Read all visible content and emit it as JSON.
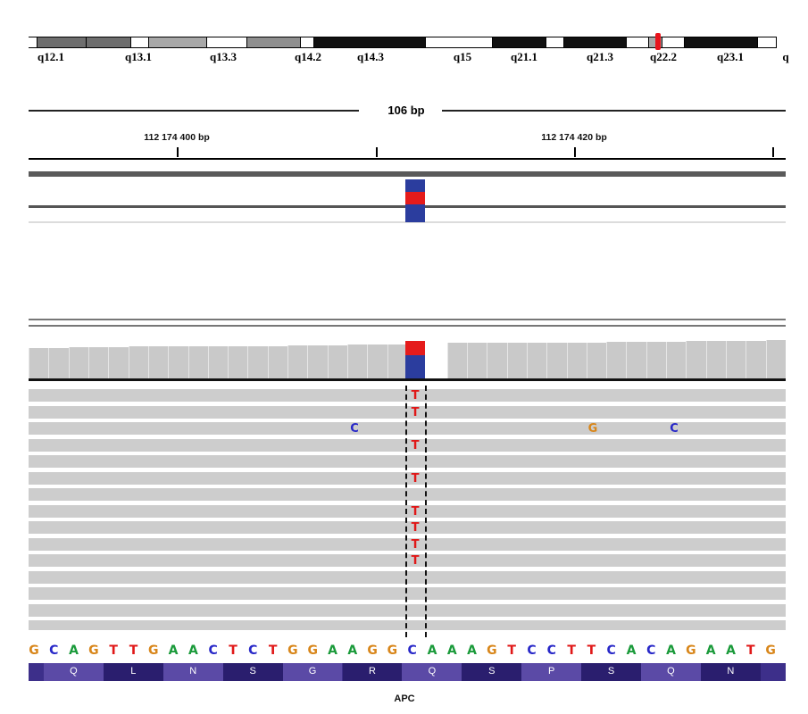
{
  "ideogram": {
    "bands": [
      {
        "color": "#ffffff"
      },
      {
        "color": "#6e6e6e"
      },
      {
        "color": "#6e6e6e"
      },
      {
        "color": "#ffffff"
      },
      {
        "color": "#a8a8a8"
      },
      {
        "color": "#ffffff"
      },
      {
        "color": "#8f8f8f"
      },
      {
        "color": "#ffffff"
      },
      {
        "color": "#111111"
      },
      {
        "color": "#ffffff"
      },
      {
        "color": "#111111"
      },
      {
        "color": "#ffffff"
      },
      {
        "color": "#111111"
      },
      {
        "color": "#ffffff"
      },
      {
        "color": "#a8a8a8"
      },
      {
        "color": "#ffffff"
      },
      {
        "color": "#111111"
      },
      {
        "color": "#ffffff"
      }
    ],
    "labels": [
      "q12.1",
      "q13.1",
      "q13.3",
      "q14.2",
      "q14.3",
      "q15",
      "q21.1",
      "q21.3",
      "q22.2",
      "q23.1",
      "q"
    ],
    "marker_color": "#e8141c"
  },
  "ruler": {
    "span_label": "106 bp",
    "ticks": [
      "112 174 400 bp",
      "112 174 420 bp"
    ]
  },
  "reads": {
    "mismatches": [
      {
        "row": 0,
        "base": "T"
      },
      {
        "row": 1,
        "base": "T"
      },
      {
        "row": 2,
        "base": "C"
      },
      {
        "row": 2,
        "base": "G"
      },
      {
        "row": 2,
        "base": "C"
      },
      {
        "row": 3,
        "base": "T"
      },
      {
        "row": 5,
        "base": "T"
      },
      {
        "row": 7,
        "base": "T"
      },
      {
        "row": 8,
        "base": "T"
      },
      {
        "row": 9,
        "base": "T"
      },
      {
        "row": 10,
        "base": "T"
      }
    ]
  },
  "sequence": {
    "bases": [
      "G",
      "C",
      "A",
      "G",
      "T",
      "T",
      "G",
      "A",
      "A",
      "C",
      "T",
      "C",
      "T",
      "G",
      "G",
      "A",
      "A",
      "G",
      "G",
      "C",
      "A",
      "A",
      "A",
      "G",
      "T",
      "C",
      "C",
      "T",
      "T",
      "C",
      "A",
      "C",
      "A",
      "G",
      "A",
      "A",
      "T",
      "G"
    ],
    "colors": {
      "A": "#1a9a3a",
      "C": "#2828c8",
      "G": "#d8861a",
      "T": "#e01818"
    }
  },
  "translation": {
    "amino_acids": [
      "Q",
      "L",
      "N",
      "S",
      "G",
      "R",
      "Q",
      "S",
      "P",
      "S",
      "Q",
      "N"
    ],
    "colors": [
      "#5b4aa6",
      "#2a1e6e"
    ]
  },
  "gene": {
    "name": "APC"
  }
}
